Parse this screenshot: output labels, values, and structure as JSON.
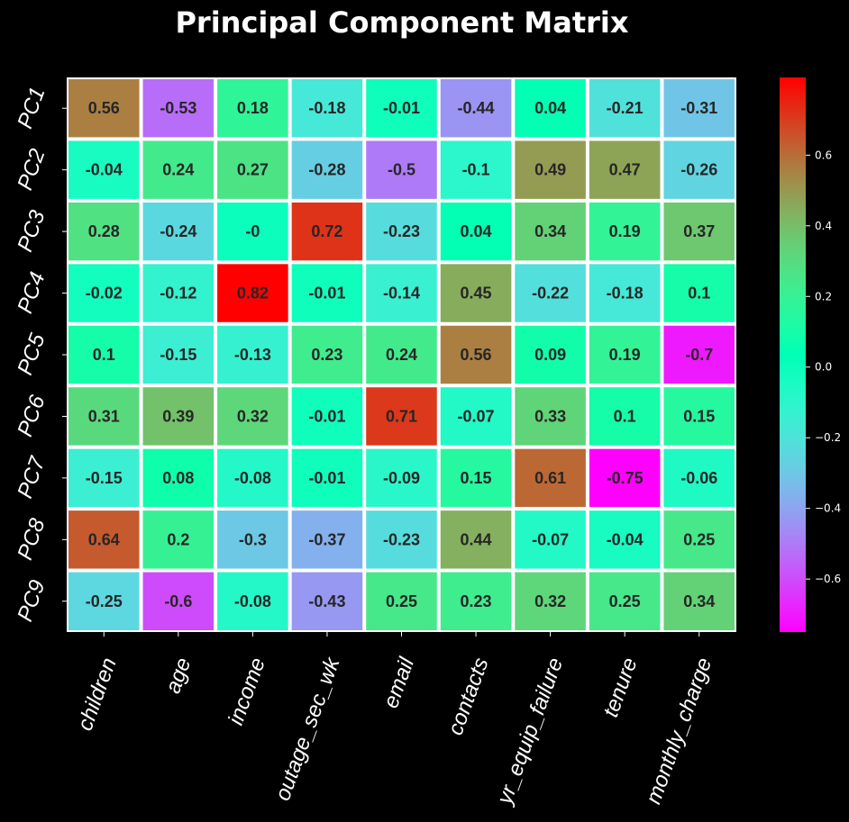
{
  "chart_data": {
    "type": "heatmap",
    "title": "Principal Component Matrix",
    "rows": [
      "PC1",
      "PC2",
      "PC3",
      "PC4",
      "PC5",
      "PC6",
      "PC7",
      "PC8",
      "PC9"
    ],
    "columns": [
      "children",
      "age",
      "income",
      "outage_sec_wk",
      "email",
      "contacts",
      "yr_equip_failure",
      "tenure",
      "monthly_charge"
    ],
    "values": [
      [
        0.56,
        -0.53,
        0.18,
        -0.18,
        -0.01,
        -0.44,
        0.04,
        -0.21,
        -0.31
      ],
      [
        -0.04,
        0.24,
        0.27,
        -0.28,
        -0.5,
        -0.1,
        0.49,
        0.47,
        -0.26
      ],
      [
        0.28,
        -0.24,
        0,
        0.72,
        -0.23,
        0.04,
        0.34,
        0.19,
        0.37
      ],
      [
        -0.02,
        -0.12,
        0.82,
        -0.01,
        -0.14,
        0.45,
        -0.22,
        -0.18,
        0.1
      ],
      [
        0.1,
        -0.15,
        -0.13,
        0.23,
        0.24,
        0.56,
        0.09,
        0.19,
        -0.7
      ],
      [
        0.31,
        0.39,
        0.32,
        -0.01,
        0.71,
        -0.07,
        0.33,
        0.1,
        0.15
      ],
      [
        -0.15,
        0.08,
        -0.08,
        -0.01,
        -0.09,
        0.15,
        0.61,
        -0.75,
        -0.06
      ],
      [
        0.64,
        0.2,
        -0.3,
        -0.37,
        -0.23,
        0.44,
        -0.07,
        -0.04,
        0.25
      ],
      [
        -0.25,
        -0.6,
        -0.08,
        -0.43,
        0.25,
        0.23,
        0.32,
        0.25,
        0.34
      ]
    ],
    "value_labels": [
      [
        "0.56",
        "-0.53",
        "0.18",
        "-0.18",
        "-0.01",
        "-0.44",
        "0.04",
        "-0.21",
        "-0.31"
      ],
      [
        "-0.04",
        "0.24",
        "0.27",
        "-0.28",
        "-0.5",
        "-0.1",
        "0.49",
        "0.47",
        "-0.26"
      ],
      [
        "0.28",
        "-0.24",
        "-0",
        "0.72",
        "-0.23",
        "0.04",
        "0.34",
        "0.19",
        "0.37"
      ],
      [
        "-0.02",
        "-0.12",
        "0.82",
        "-0.01",
        "-0.14",
        "0.45",
        "-0.22",
        "-0.18",
        "0.1"
      ],
      [
        "0.1",
        "-0.15",
        "-0.13",
        "0.23",
        "0.24",
        "0.56",
        "0.09",
        "0.19",
        "-0.7"
      ],
      [
        "0.31",
        "0.39",
        "0.32",
        "-0.01",
        "0.71",
        "-0.07",
        "0.33",
        "0.1",
        "0.15"
      ],
      [
        "-0.15",
        "0.08",
        "-0.08",
        "-0.01",
        "-0.09",
        "0.15",
        "0.61",
        "-0.75",
        "-0.06"
      ],
      [
        "0.64",
        "0.2",
        "-0.3",
        "-0.37",
        "-0.23",
        "0.44",
        "-0.07",
        "-0.04",
        "0.25"
      ],
      [
        "-0.25",
        "-0.6",
        "-0.08",
        "-0.43",
        "0.25",
        "0.23",
        "0.32",
        "0.25",
        "0.34"
      ]
    ],
    "colormap": "rainbow",
    "vmin": -0.75,
    "vmax": 0.82,
    "colorbar": {
      "ticks": [
        0.6,
        0.4,
        0.2,
        0.0,
        -0.2,
        -0.4,
        -0.6
      ],
      "tick_labels": [
        "0.6",
        "0.4",
        "0.2",
        "0.0",
        "−0.2",
        "−0.4",
        "−0.6"
      ],
      "placement": "right"
    },
    "cell_border_color": "#ffffff",
    "background_color": "#000000",
    "text_color": "#ffffff",
    "annotation_color": "#262626",
    "xlabel": "",
    "ylabel": ""
  }
}
